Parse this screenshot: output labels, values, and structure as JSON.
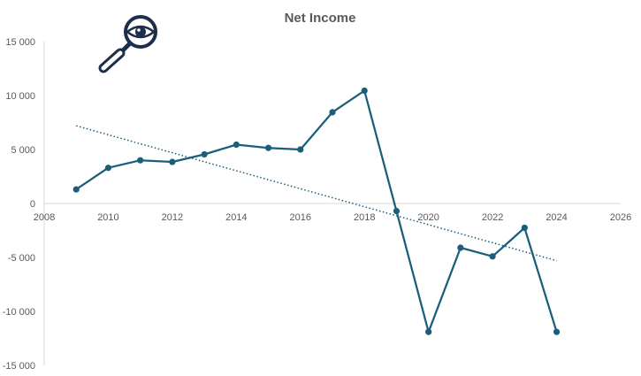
{
  "chart_data": {
    "type": "line",
    "title": "Net Income",
    "xlabel": "",
    "ylabel": "",
    "xlim": [
      2008,
      2026
    ],
    "ylim": [
      -15000,
      15000
    ],
    "x_ticks": [
      2008,
      2010,
      2012,
      2014,
      2016,
      2018,
      2020,
      2022,
      2024,
      2026
    ],
    "x_tick_labels": [
      "2008",
      "2010",
      "2012",
      "2014",
      "2016",
      "2018",
      "2020",
      "2022",
      "2024",
      "2026"
    ],
    "y_ticks": [
      15000,
      10000,
      5000,
      0,
      -5000,
      -10000,
      -15000
    ],
    "y_tick_labels": [
      "15 000",
      "10 000",
      "5 000",
      "0",
      "-5 000",
      "-10 000",
      "-15 000"
    ],
    "grid": false,
    "legend": "none",
    "series": [
      {
        "x": [
          2009,
          2010,
          2011,
          2012,
          2013,
          2014,
          2015,
          2016,
          2017,
          2018,
          2019,
          2020,
          2021,
          2022,
          2023,
          2024
        ],
        "y": [
          1300,
          3300,
          4000,
          3850,
          4550,
          5450,
          5150,
          5000,
          8450,
          10450,
          -700,
          -11900,
          -4100,
          -4900,
          -2250,
          -11900
        ],
        "color": "#1a5e7a",
        "markers": true
      }
    ],
    "trendline": {
      "type": "linear",
      "style": "dotted",
      "color": "#1a5e7a",
      "x": [
        2009,
        2024
      ],
      "y": [
        7200,
        -5300
      ]
    }
  },
  "icon": {
    "name": "search-eye-icon",
    "color": "#1c2e4a"
  }
}
